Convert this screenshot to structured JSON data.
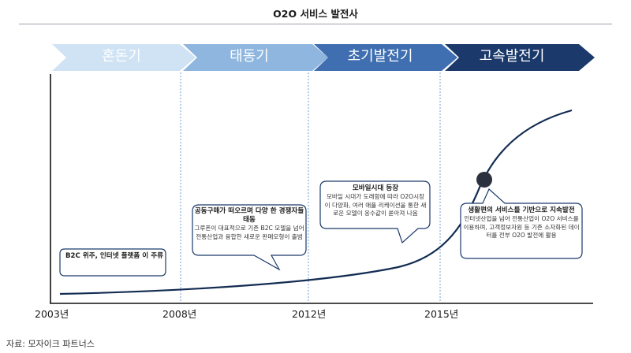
{
  "title": "O2O 서비스 발전사",
  "phases": [
    {
      "label": "혼돈기",
      "color": "#cfe3f4"
    },
    {
      "label": "태동기",
      "color": "#8fb6df"
    },
    {
      "label": "초기발전기",
      "color": "#3f6fb0"
    },
    {
      "label": "고속발전기",
      "color": "#1b3a6b"
    }
  ],
  "callouts": [
    {
      "head": "B2C 위주, 인터넷 플랫폼 이 주류",
      "body": ""
    },
    {
      "head": "공동구매가 떠오르며 다양 한 경쟁자들 태동",
      "body": "그루폰이 대표적으로 기존 B2C 모델을 넘어 전통산업과 융합한 새로운 판매모형이 출범"
    },
    {
      "head": "모바일시대 등장",
      "body": "모바일 시대가 도래함에 따라 O2O시장이 다양화, 여러 애플 리케이션을 통한 새로운 모델이 옹수같이 쏟아져 나옴"
    },
    {
      "head": "생활편의 서비스를 기반으로 지속발전",
      "body": "인터넷산업을 넘어 전통산업이 O2O 서비스를 이용하며, 고객정보자원 등 기존 소자화된 데이터를 전부 O2O 발전에 활용"
    }
  ],
  "years": [
    "2003년",
    "2008년",
    "2012년",
    "2015년"
  ],
  "source": "자료: 모자이크 파트너스"
}
